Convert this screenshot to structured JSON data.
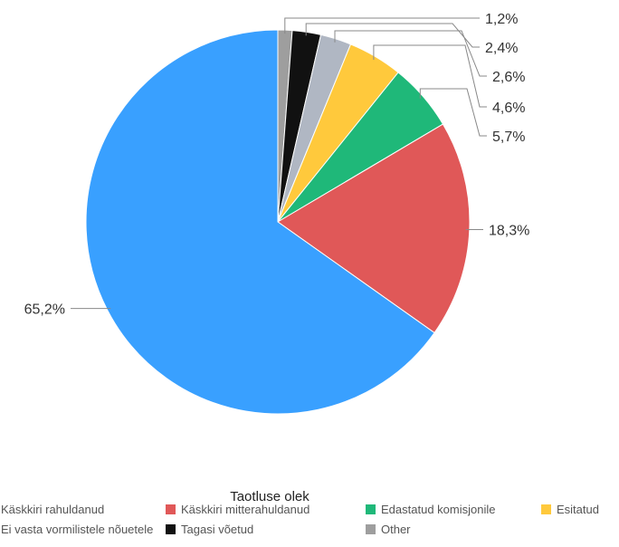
{
  "chart_data": {
    "type": "pie",
    "legend_title": "Taotluse olek",
    "legend_placement": "bottom",
    "slices": [
      {
        "name": "Other",
        "value": 1.2,
        "label": "1,2%",
        "color": "#9e9e9e"
      },
      {
        "name": "Tagasi võetud",
        "value": 2.4,
        "label": "2,4%",
        "color": "#111111"
      },
      {
        "name": "ei vasta vormilistele nõuetele",
        "value": 2.6,
        "label": "2,6%",
        "color": "#b0b7c3"
      },
      {
        "name": "Esitatud",
        "value": 4.6,
        "label": "4,6%",
        "color": "#ffc93c"
      },
      {
        "name": "Edastatud komisjonile",
        "value": 5.7,
        "label": "5,7%",
        "color": "#1fb879"
      },
      {
        "name": "Käskkiri mitterahuldanud",
        "value": 18.3,
        "label": "18,3%",
        "color": "#e05858"
      },
      {
        "name": "Käskkiri rahuldanud",
        "value": 65.2,
        "label": "65,2%",
        "color": "#39a0ff"
      }
    ],
    "legend": [
      {
        "text": "Käskkiri rahuldanud",
        "color": "#39a0ff"
      },
      {
        "text": "Käskkiri mitterahuldanud",
        "color": "#e05858"
      },
      {
        "text": "Edastatud komisjonile",
        "color": "#1fb879"
      },
      {
        "text": "Esitatud",
        "color": "#ffc93c"
      },
      {
        "text": "Ei vasta vormilistele nõuetele",
        "color": "#b0b7c3"
      },
      {
        "text": "Tagasi võetud",
        "color": "#111111"
      },
      {
        "text": "Other",
        "color": "#9e9e9e"
      }
    ]
  }
}
